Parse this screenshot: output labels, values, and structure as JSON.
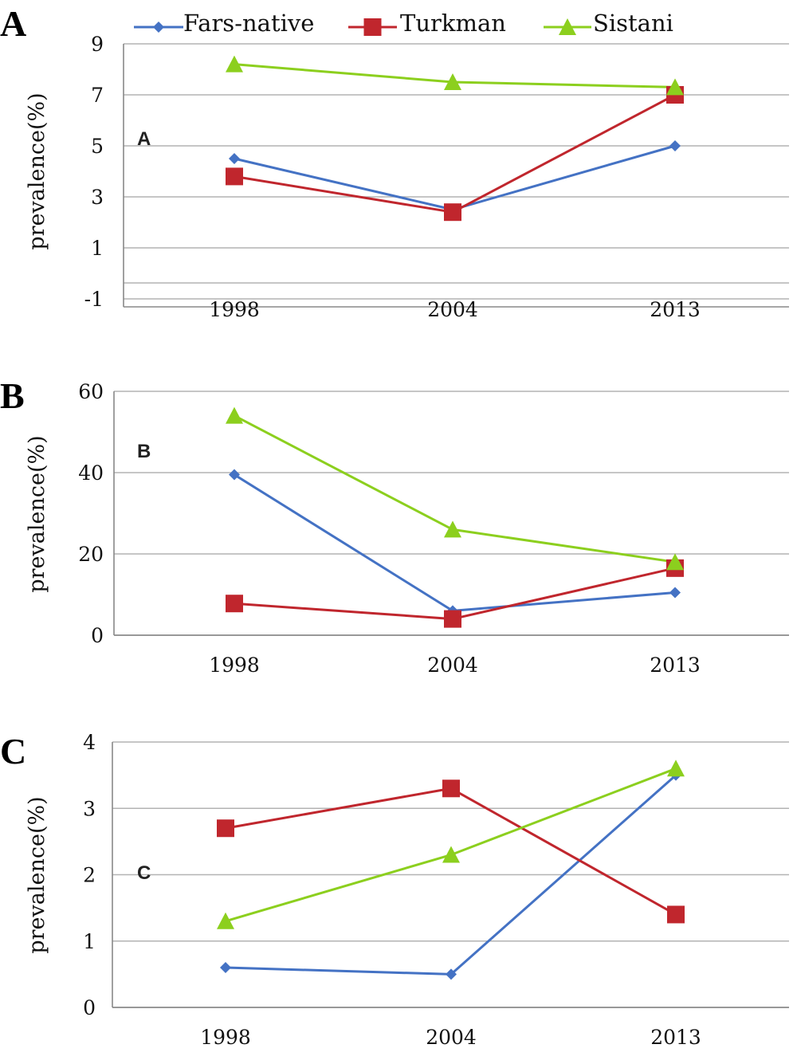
{
  "legend": [
    {
      "name": "Fars-native",
      "color": "#4472C4",
      "marker": "diamond"
    },
    {
      "name": "Turkman",
      "color": "#C0262D",
      "marker": "square"
    },
    {
      "name": "Sistani",
      "color": "#8CCF1E",
      "marker": "triangle"
    }
  ],
  "chart_data": [
    {
      "type": "line",
      "panel_label": "A",
      "inner_label": "A",
      "ylabel": "prevalence(%)",
      "categories": [
        "1998",
        "2004",
        "2013"
      ],
      "ylim": [
        -1,
        9
      ],
      "yticks": [
        9,
        7,
        5,
        3,
        1,
        -1
      ],
      "series": [
        {
          "name": "Fars-native",
          "values": [
            4.5,
            2.5,
            5.0
          ]
        },
        {
          "name": "Turkman",
          "values": [
            3.8,
            2.4,
            7.0
          ]
        },
        {
          "name": "Sistani",
          "values": [
            8.2,
            7.5,
            7.3
          ]
        }
      ]
    },
    {
      "type": "line",
      "panel_label": "B",
      "inner_label": "B",
      "ylabel": "prevalence(%)",
      "categories": [
        "1998",
        "2004",
        "2013"
      ],
      "ylim": [
        0,
        60
      ],
      "yticks": [
        60,
        40,
        20,
        0
      ],
      "series": [
        {
          "name": "Fars-native",
          "values": [
            39.5,
            6,
            10.5
          ]
        },
        {
          "name": "Turkman",
          "values": [
            7.8,
            4,
            16.5
          ]
        },
        {
          "name": "Sistani",
          "values": [
            54,
            26,
            18
          ]
        }
      ]
    },
    {
      "type": "line",
      "panel_label": "C",
      "inner_label": "C",
      "ylabel": "prevalence(%)",
      "categories": [
        "1998",
        "2004",
        "2013"
      ],
      "ylim": [
        0,
        4
      ],
      "yticks": [
        4,
        3,
        2,
        1,
        0
      ],
      "series": [
        {
          "name": "Fars-native",
          "values": [
            0.6,
            0.5,
            3.5
          ]
        },
        {
          "name": "Turkman",
          "values": [
            2.7,
            3.3,
            1.4
          ]
        },
        {
          "name": "Sistani",
          "values": [
            1.3,
            2.3,
            3.6
          ]
        }
      ]
    }
  ]
}
